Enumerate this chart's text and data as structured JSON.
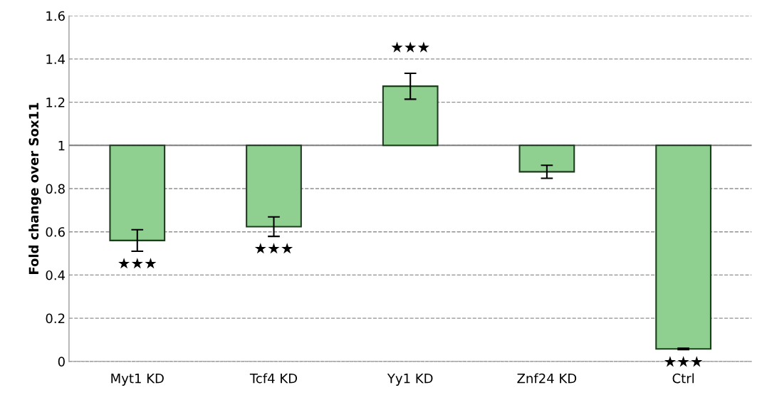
{
  "chart_data": {
    "type": "bar",
    "ylabel": "Fold change over Sox11",
    "categories": [
      "Myt1 KD",
      "Tcf4 KD",
      "Yy1 KD",
      "Znf24 KD",
      "Ctrl"
    ],
    "base": [
      1,
      1,
      1,
      1,
      1
    ],
    "values": [
      -0.44,
      -0.376,
      0.274,
      -0.122,
      -0.942
    ],
    "errors": [
      0.05,
      0.045,
      0.06,
      0.03,
      0.003
    ],
    "color": "#8fcf8f",
    "ylim": [
      0,
      1.6
    ],
    "yticks": [
      0,
      0.2,
      0.4,
      0.6,
      0.8,
      1,
      1.2,
      1.4,
      1.6
    ],
    "grid": "y",
    "ref_lines": [
      {
        "axis": "y",
        "value": 1,
        "color": "#808080",
        "line_style": "solid"
      }
    ],
    "value_labels": [
      "★★★",
      "★★★",
      "★★★",
      null,
      "★★★"
    ]
  }
}
